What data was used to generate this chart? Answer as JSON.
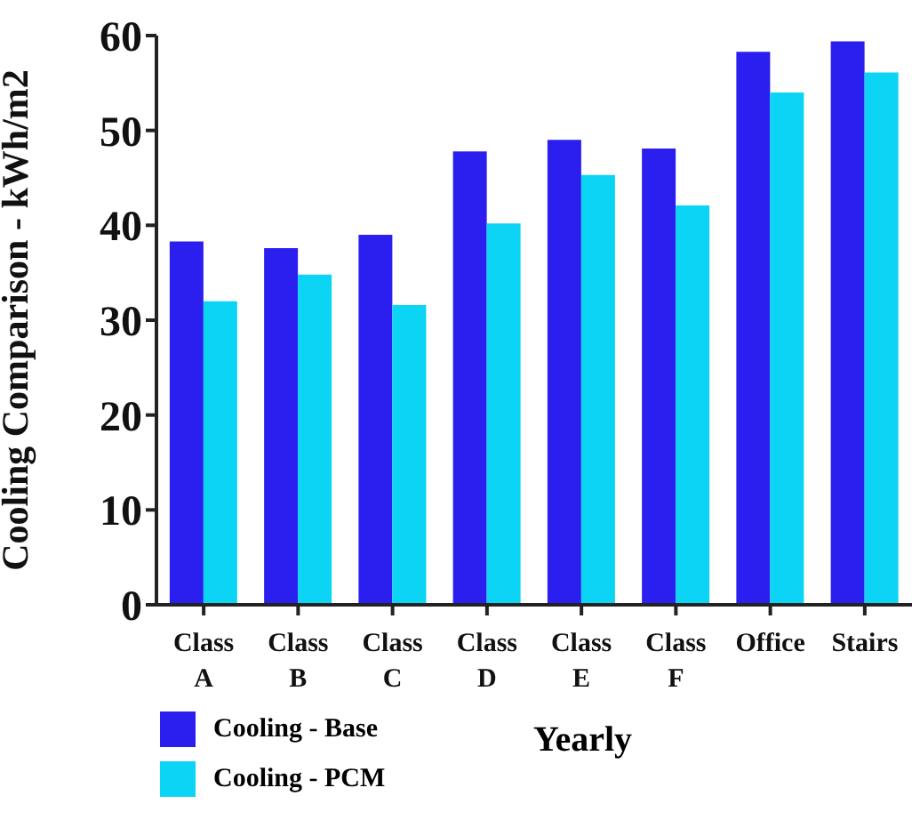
{
  "chart_data": {
    "type": "bar",
    "xlabel": "Yearly",
    "ylabel": "Cooling Comparison - kWh/m2",
    "categories": [
      "Class A",
      "Class B",
      "Class C",
      "Class D",
      "Class E",
      "Class F",
      "Office",
      "Stairs"
    ],
    "series": [
      {
        "name": "Cooling - Base",
        "color": "#2b1ff0",
        "values": [
          38.3,
          37.6,
          39.0,
          47.8,
          49.0,
          48.1,
          58.3,
          59.4
        ]
      },
      {
        "name": "Cooling - PCM",
        "color": "#0bd4f5",
        "values": [
          32.0,
          34.8,
          31.6,
          40.2,
          45.3,
          42.1,
          54.0,
          56.1
        ]
      }
    ],
    "ylim": [
      0,
      60
    ],
    "yticks": [
      0,
      10,
      20,
      30,
      40,
      50,
      60
    ],
    "grid": false,
    "legend": "bottom left"
  }
}
